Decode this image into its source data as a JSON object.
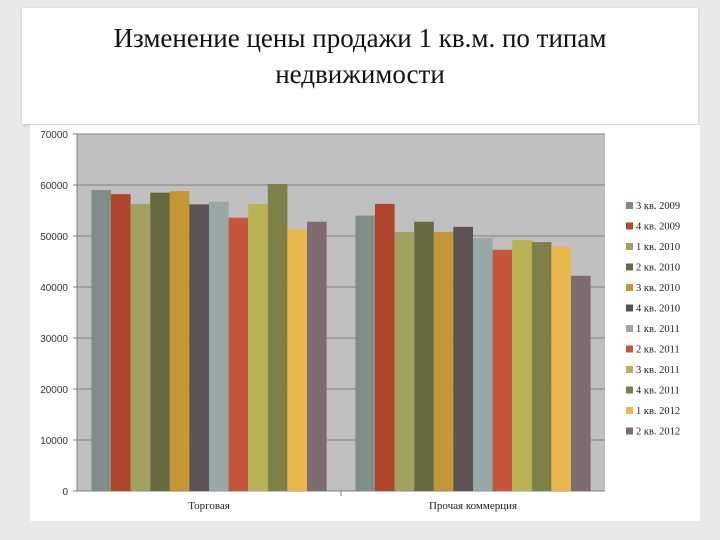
{
  "title": "Изменение цены продажи 1 кв.м. по типам\nнедвижимости",
  "chart_data": {
    "type": "bar",
    "categories": [
      "Торговая",
      "Прочая коммерция"
    ],
    "ylim": [
      0,
      70000
    ],
    "yticks": [
      0,
      10000,
      20000,
      30000,
      40000,
      50000,
      60000,
      70000
    ],
    "grid": true,
    "plot_background": "#c0c0c0",
    "legend_position": "right",
    "series": [
      {
        "name": "3 кв. 2009",
        "color": "#7e8e87",
        "values": [
          59000,
          54000
        ]
      },
      {
        "name": "4 кв. 2009",
        "color": "#b0452e",
        "values": [
          58200,
          56300
        ]
      },
      {
        "name": "1 кв. 2010",
        "color": "#a3a162",
        "values": [
          56300,
          50800
        ]
      },
      {
        "name": "2 кв. 2010",
        "color": "#67693f",
        "values": [
          58500,
          52800
        ]
      },
      {
        "name": "3 кв. 2010",
        "color": "#c49636",
        "values": [
          58800,
          50800
        ]
      },
      {
        "name": "4 кв. 2010",
        "color": "#5c5253",
        "values": [
          56200,
          51800
        ]
      },
      {
        "name": "1 кв. 2011",
        "color": "#98a8a6",
        "values": [
          56700,
          49600
        ]
      },
      {
        "name": "2 кв. 2011",
        "color": "#c5553d",
        "values": [
          53600,
          47300
        ]
      },
      {
        "name": "3 кв. 2011",
        "color": "#b8b456",
        "values": [
          56300,
          49200
        ]
      },
      {
        "name": "4 кв. 2011",
        "color": "#7d8147",
        "values": [
          60200,
          48800
        ]
      },
      {
        "name": "1 кв. 2012",
        "color": "#e8b74e",
        "values": [
          51300,
          47900
        ]
      },
      {
        "name": "2 кв. 2012",
        "color": "#7d6b6f",
        "values": [
          52800,
          42200
        ]
      }
    ]
  }
}
